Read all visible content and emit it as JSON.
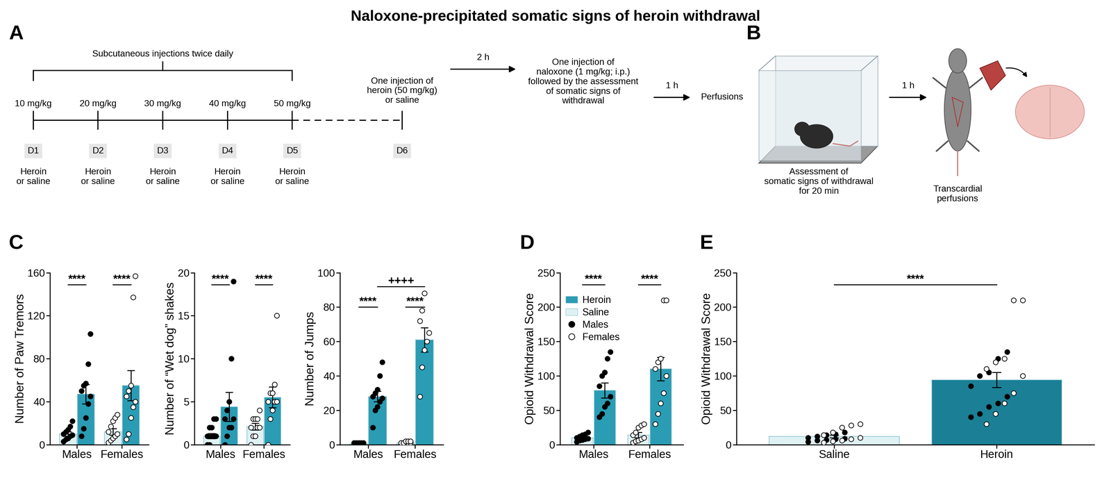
{
  "title": "Naloxone-precipitated somatic signs of heroin withdrawal",
  "diagram_A": {
    "label": "A",
    "brace_text": "Subcutaneous injections twice daily",
    "days": [
      {
        "day": "D1",
        "dose": "10 mg/kg",
        "treatment": "Heroin\nor saline"
      },
      {
        "day": "D2",
        "dose": "20 mg/kg",
        "treatment": "Heroin\nor saline"
      },
      {
        "day": "D3",
        "dose": "30 mg/kg",
        "treatment": "Heroin\nor saline"
      },
      {
        "day": "D4",
        "dose": "40 mg/kg",
        "treatment": "Heroin\nor saline"
      },
      {
        "day": "D5",
        "dose": "50 mg/kg",
        "treatment": "Heroin\nor saline"
      }
    ],
    "last_day": {
      "day": "D6",
      "text": "One injection of\nheroin (50 mg/kg)\nor saline"
    },
    "steps": [
      {
        "interval": "2 h",
        "text": "One injection of\nnaloxone (1 mg/kg; i.p.)\nfollowed by the assessment\nof somatic signs of\nwithdrawal"
      },
      {
        "interval": "1 h",
        "text": "Perfusions"
      }
    ]
  },
  "diagram_B": {
    "label": "B",
    "left_text": "Assessment of\nsomatic signs of withdrawal\nfor 20 min",
    "interval": "1 h",
    "right_text": "Transcardial\nperfusions"
  },
  "chart_data": [
    {
      "panel": "C",
      "type": "bar",
      "ylabel": "Number of Paw Tremors",
      "categories": [
        "Males",
        "Females"
      ],
      "ylim": [
        0,
        160
      ],
      "yticks": [
        0,
        40,
        80,
        120,
        160
      ],
      "series": [
        {
          "name": "Saline",
          "color": "#dff1f3",
          "values": [
            10,
            12
          ],
          "errors": [
            2,
            3
          ],
          "points": [
            {
              "marker": "filled_circle",
              "values": [
                3,
                5,
                6,
                8,
                9,
                10,
                12,
                14,
                17,
                22
              ]
            },
            {
              "marker": "open_circle",
              "values": [
                2,
                4,
                6,
                8,
                10,
                12,
                17,
                22,
                25,
                28
              ]
            }
          ]
        },
        {
          "name": "Heroin",
          "color": "#2a9cb4",
          "values": [
            47,
            55
          ],
          "errors": [
            9,
            14
          ],
          "points": [
            {
              "marker": "filled_circle",
              "values": [
                8,
                15,
                25,
                38,
                45,
                50,
                55,
                57,
                75,
                103
              ]
            },
            {
              "marker": "open_circle",
              "values": [
                5,
                10,
                25,
                35,
                40,
                45,
                50,
                55,
                137,
                157
              ]
            }
          ]
        }
      ],
      "annotations": [
        {
          "text": "****",
          "category": "Males"
        },
        {
          "text": "****",
          "category": "Females"
        }
      ]
    },
    {
      "type": "bar",
      "ylabel": "Number of “Wet dog” shakes",
      "categories": [
        "Males",
        "Females"
      ],
      "ylim": [
        0,
        20
      ],
      "yticks": [
        0,
        5,
        10,
        15,
        20
      ],
      "series": [
        {
          "name": "Saline",
          "color": "#dff1f3",
          "values": [
            1,
            2.1
          ],
          "errors": [
            0.3,
            0.4
          ],
          "points": [
            {
              "marker": "filled_circle",
              "values": [
                0,
                0,
                1,
                1,
                1,
                1,
                2,
                2,
                3,
                3
              ]
            },
            {
              "marker": "open_circle",
              "values": [
                0,
                1,
                1,
                2,
                2,
                2,
                3,
                3,
                3,
                4
              ]
            }
          ]
        },
        {
          "name": "Heroin",
          "color": "#2a9cb4",
          "values": [
            4.4,
            5.5
          ],
          "errors": [
            1.7,
            1.2
          ],
          "points": [
            {
              "marker": "filled_circle",
              "values": [
                0,
                1,
                2,
                2,
                3,
                3,
                4,
                5,
                10,
                19
              ]
            },
            {
              "marker": "open_circle",
              "values": [
                0,
                3,
                4,
                5,
                5,
                5,
                6,
                6,
                7,
                15
              ]
            }
          ]
        }
      ],
      "annotations": [
        {
          "text": "****",
          "category": "Males"
        },
        {
          "text": "****",
          "category": "Females"
        }
      ]
    },
    {
      "type": "bar",
      "ylabel": "Number of Jumps",
      "categories": [
        "Males",
        "Females"
      ],
      "ylim": [
        0,
        100
      ],
      "yticks": [
        0,
        20,
        40,
        60,
        80,
        100
      ],
      "series": [
        {
          "name": "Saline",
          "color": "#dff1f3",
          "values": [
            0.5,
            1
          ],
          "errors": [
            0.3,
            0.5
          ],
          "points": [
            {
              "marker": "filled_circle",
              "values": [
                0,
                0,
                0,
                0,
                0,
                1,
                1,
                1,
                1,
                1
              ]
            },
            {
              "marker": "open_circle",
              "values": [
                0,
                0,
                0,
                1,
                1,
                1,
                1,
                2,
                2,
                2
              ]
            }
          ]
        },
        {
          "name": "Heroin",
          "color": "#2a9cb4",
          "values": [
            28,
            61
          ],
          "errors": [
            3,
            7
          ],
          "points": [
            {
              "marker": "filled_circle",
              "values": [
                10,
                20,
                22,
                25,
                27,
                28,
                30,
                32,
                40,
                48
              ]
            },
            {
              "marker": "open_circle",
              "values": [
                28,
                45,
                55,
                60,
                65,
                72,
                78,
                88
              ]
            }
          ]
        }
      ],
      "annotations": [
        {
          "text": "****",
          "category": "Males"
        },
        {
          "text": "****",
          "category": "Females"
        },
        {
          "text": "++++",
          "series": "Heroin",
          "between": [
            "Males",
            "Females"
          ]
        }
      ]
    },
    {
      "panel": "D",
      "type": "bar",
      "ylabel": "Opioid Withdrawal Score",
      "categories": [
        "Males",
        "Females"
      ],
      "ylim": [
        0,
        250
      ],
      "yticks": [
        0,
        50,
        100,
        150,
        200,
        250
      ],
      "legend": "upper left",
      "legend_markers": [
        {
          "name": "Males",
          "marker": "filled_circle"
        },
        {
          "name": "Females",
          "marker": "open_circle"
        }
      ],
      "series": [
        {
          "name": "Saline",
          "color": "#dff1f3",
          "values": [
            10,
            14
          ],
          "errors": [
            2,
            4
          ],
          "points": [
            {
              "marker": "filled_circle",
              "values": [
                4,
                6,
                7,
                8,
                9,
                10,
                12,
                14,
                15,
                18
              ]
            },
            {
              "marker": "open_circle",
              "values": [
                3,
                5,
                6,
                8,
                10,
                14,
                18,
                25,
                28,
                30
              ]
            }
          ]
        },
        {
          "name": "Heroin",
          "color": "#2a9cb4",
          "values": [
            79,
            110
          ],
          "errors": [
            11,
            17
          ],
          "points": [
            {
              "marker": "filled_circle",
              "values": [
                40,
                45,
                55,
                60,
                70,
                85,
                100,
                105,
                125,
                135
              ]
            },
            {
              "marker": "open_circle",
              "values": [
                30,
                45,
                60,
                75,
                100,
                110,
                120,
                125,
                210,
                210
              ]
            }
          ]
        }
      ],
      "annotations": [
        {
          "text": "****",
          "category": "Males"
        },
        {
          "text": "****",
          "category": "Females"
        }
      ]
    },
    {
      "panel": "E",
      "type": "bar",
      "ylabel": "Opioid Withdrawal Score",
      "categories": [
        "Saline",
        "Heroin"
      ],
      "ylim": [
        0,
        250
      ],
      "yticks": [
        0,
        50,
        100,
        150,
        200,
        250
      ],
      "values": [
        12,
        94
      ],
      "errors": [
        2,
        11
      ],
      "colors": [
        "#dff1f3",
        "#1b7f96"
      ],
      "points": [
        {
          "marker": "filled_circle",
          "values": [
            [
              4,
              6,
              7,
              8,
              9,
              10,
              12,
              14,
              15,
              18
            ],
            [
              40,
              45,
              55,
              60,
              70,
              85,
              100,
              105,
              125,
              135
            ]
          ]
        },
        {
          "marker": "open_circle",
          "values": [
            [
              3,
              5,
              6,
              8,
              10,
              14,
              18,
              25,
              28,
              30
            ],
            [
              30,
              45,
              60,
              75,
              100,
              110,
              120,
              125,
              210,
              210
            ]
          ]
        }
      ],
      "annotations": [
        {
          "text": "****",
          "between": [
            "Saline",
            "Heroin"
          ]
        }
      ]
    }
  ]
}
